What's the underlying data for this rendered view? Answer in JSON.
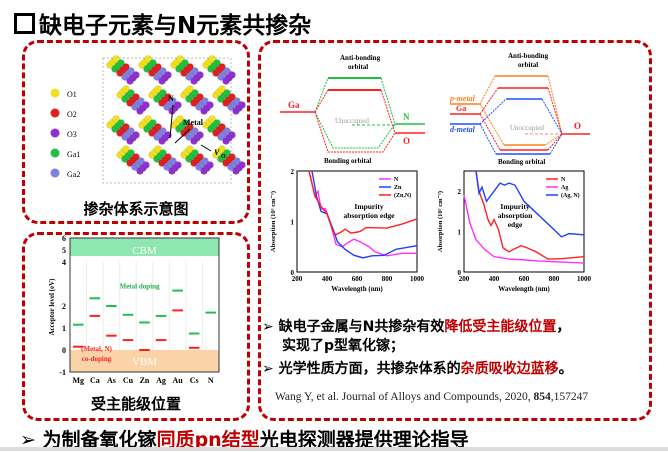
{
  "title": "缺电子元素与N元素共掺杂",
  "panel_structure": {
    "caption": "掺杂体系示意图",
    "legend": [
      "O1",
      "O2",
      "O3",
      "Ga1",
      "Ga2"
    ],
    "legend_colors": [
      "#f0e020",
      "#e02020",
      "#9030d0",
      "#20c040",
      "#8080e0"
    ],
    "labels": {
      "n": "N",
      "metal": "Metal",
      "vo": "V",
      "vo_sub": "O"
    }
  },
  "panel_acceptor": {
    "caption": "受主能级位置"
  },
  "orbital1": {
    "anti": "Anti-bonding",
    "anti2": "orbital",
    "bonding": "Bonding orbital",
    "ga": "Ga",
    "n": "N",
    "o": "O",
    "unocc": "Unoccupied"
  },
  "orbital2": {
    "anti": "Anti-bonding",
    "anti2": "orbital",
    "bonding": "Bonding orbital",
    "pmetal": "p-metal",
    "ga": "Ga",
    "dmetal": "d-metal",
    "o": "O",
    "unocc": "Unoccupied"
  },
  "bullets": [
    {
      "a": "缺电子金属与N共掺杂有效",
      "b": "降低受主能级位置",
      "c": "，",
      "line2": "实现了p型氧化镓；"
    },
    {
      "a": "光学性质方面，共掺杂体系的",
      "b": "杂质吸收边蓝移",
      "c": "。"
    }
  ],
  "reference": {
    "text": "Wang Y, et al. Journal of Alloys and Compounds, 2020, ",
    "vol": "854",
    "pages": ",157247"
  },
  "conclusion": {
    "a": "为制备氧化镓",
    "b": "同质pn结型",
    "c": "光电探测器提供理论指导"
  },
  "bullet_glyph": "➢",
  "chart_data": [
    {
      "type": "line",
      "id": "abs1",
      "xlabel": "Wavelength (nm)",
      "ylabel": "Absorption (10⁵ cm⁻¹)",
      "xlim": [
        200,
        1000
      ],
      "ylim": [
        0,
        2
      ],
      "xticks": [
        200,
        400,
        600,
        800,
        1000
      ],
      "yticks": [
        0,
        1,
        2
      ],
      "annotation": [
        "Impurity",
        "absorption edge"
      ],
      "series": [
        {
          "name": "N",
          "color": "#ff30ff",
          "points": [
            [
              280,
              2
            ],
            [
              320,
              1.5
            ],
            [
              340,
              1.6
            ],
            [
              360,
              1.25
            ],
            [
              390,
              1.25
            ],
            [
              420,
              1.0
            ],
            [
              460,
              0.55
            ],
            [
              500,
              0.5
            ],
            [
              540,
              0.58
            ],
            [
              580,
              0.65
            ],
            [
              620,
              0.6
            ],
            [
              680,
              0.5
            ],
            [
              720,
              0.4
            ],
            [
              800,
              0.32
            ],
            [
              900,
              0.37
            ],
            [
              1000,
              0.37
            ]
          ]
        },
        {
          "name": "Zn",
          "color": "#2040ff",
          "points": [
            [
              300,
              2
            ],
            [
              330,
              1.5
            ],
            [
              360,
              1.2
            ],
            [
              400,
              1.15
            ],
            [
              440,
              0.85
            ],
            [
              470,
              0.6
            ],
            [
              520,
              0.45
            ],
            [
              580,
              0.33
            ],
            [
              640,
              0.28
            ],
            [
              700,
              0.32
            ],
            [
              780,
              0.33
            ],
            [
              860,
              0.45
            ],
            [
              1000,
              0.52
            ]
          ]
        },
        {
          "name": "(Zn,N)",
          "color": "#ff2020",
          "points": [
            [
              280,
              2
            ],
            [
              320,
              1.5
            ],
            [
              360,
              1.3
            ],
            [
              400,
              1.15
            ],
            [
              440,
              0.8
            ],
            [
              460,
              0.74
            ],
            [
              500,
              0.8
            ],
            [
              520,
              0.85
            ],
            [
              560,
              0.77
            ],
            [
              620,
              0.8
            ],
            [
              660,
              0.88
            ],
            [
              800,
              0.87
            ],
            [
              900,
              0.95
            ],
            [
              1000,
              1.05
            ]
          ]
        }
      ]
    },
    {
      "type": "line",
      "id": "abs2",
      "xlabel": "Wavelength (nm)",
      "ylabel": "Absorption (10⁵ cm⁻¹)",
      "xlim": [
        200,
        1000
      ],
      "ylim": [
        0,
        2.5
      ],
      "xticks": [
        200,
        400,
        600,
        800,
        1000
      ],
      "yticks": [
        0,
        1,
        2
      ],
      "annotation": [
        "Impurity",
        "absorption",
        "edge"
      ],
      "series": [
        {
          "name": "N",
          "color": "#ff2020",
          "points": [
            [
              280,
              2.5
            ],
            [
              300,
              2.0
            ],
            [
              330,
              1.7
            ],
            [
              360,
              1.3
            ],
            [
              380,
              1.15
            ],
            [
              400,
              1.3
            ],
            [
              430,
              1.05
            ],
            [
              460,
              0.6
            ],
            [
              500,
              0.5
            ],
            [
              540,
              0.58
            ],
            [
              580,
              0.65
            ],
            [
              620,
              0.6
            ],
            [
              680,
              0.5
            ],
            [
              760,
              0.32
            ],
            [
              850,
              0.33
            ],
            [
              1000,
              0.38
            ]
          ]
        },
        {
          "name": "Ag",
          "color": "#ff30ff",
          "points": [
            [
              200,
              1.9
            ],
            [
              240,
              1.2
            ],
            [
              280,
              0.8
            ],
            [
              340,
              0.55
            ],
            [
              400,
              0.38
            ],
            [
              500,
              0.32
            ],
            [
              600,
              0.3
            ],
            [
              700,
              0.27
            ],
            [
              1000,
              0.22
            ]
          ]
        },
        {
          "name": "(Ag, N)",
          "color": "#2040ff",
          "points": [
            [
              280,
              2.5
            ],
            [
              300,
              1.95
            ],
            [
              320,
              2.1
            ],
            [
              350,
              1.75
            ],
            [
              380,
              1.9
            ],
            [
              420,
              2.1
            ],
            [
              440,
              2.2
            ],
            [
              470,
              2.15
            ],
            [
              500,
              2.2
            ],
            [
              540,
              2.15
            ],
            [
              600,
              1.75
            ],
            [
              700,
              1.4
            ],
            [
              800,
              1.05
            ],
            [
              850,
              0.87
            ],
            [
              900,
              0.95
            ],
            [
              1000,
              0.92
            ]
          ]
        }
      ]
    },
    {
      "type": "bar",
      "id": "acceptor",
      "ylabel": "Acceptor level (eV)",
      "ylim": [
        -1,
        6
      ],
      "yticks": [
        -1,
        0,
        1,
        2,
        4,
        5,
        6
      ],
      "axis_break": 4,
      "categories": [
        "Mg",
        "Ca",
        "As",
        "Cu",
        "Zn",
        "Ag",
        "Au",
        "Cs",
        "N"
      ],
      "bands": {
        "cbm": "CBM",
        "vbm": "VBM"
      },
      "series": [
        {
          "name": "Metal doping",
          "color": "#20c050",
          "values": [
            1.15,
            2.35,
            2.0,
            1.6,
            1.25,
            1.55,
            2.7,
            0.75,
            1.7
          ]
        },
        {
          "name": "(Metal, N) co-doping",
          "label_lines": [
            "(Metal, N)",
            "co-doping"
          ],
          "color": "#ff2020",
          "values": [
            0.15,
            1.55,
            0.65,
            0.45,
            0.0,
            0.45,
            1.8,
            0.1,
            null
          ]
        }
      ]
    }
  ]
}
